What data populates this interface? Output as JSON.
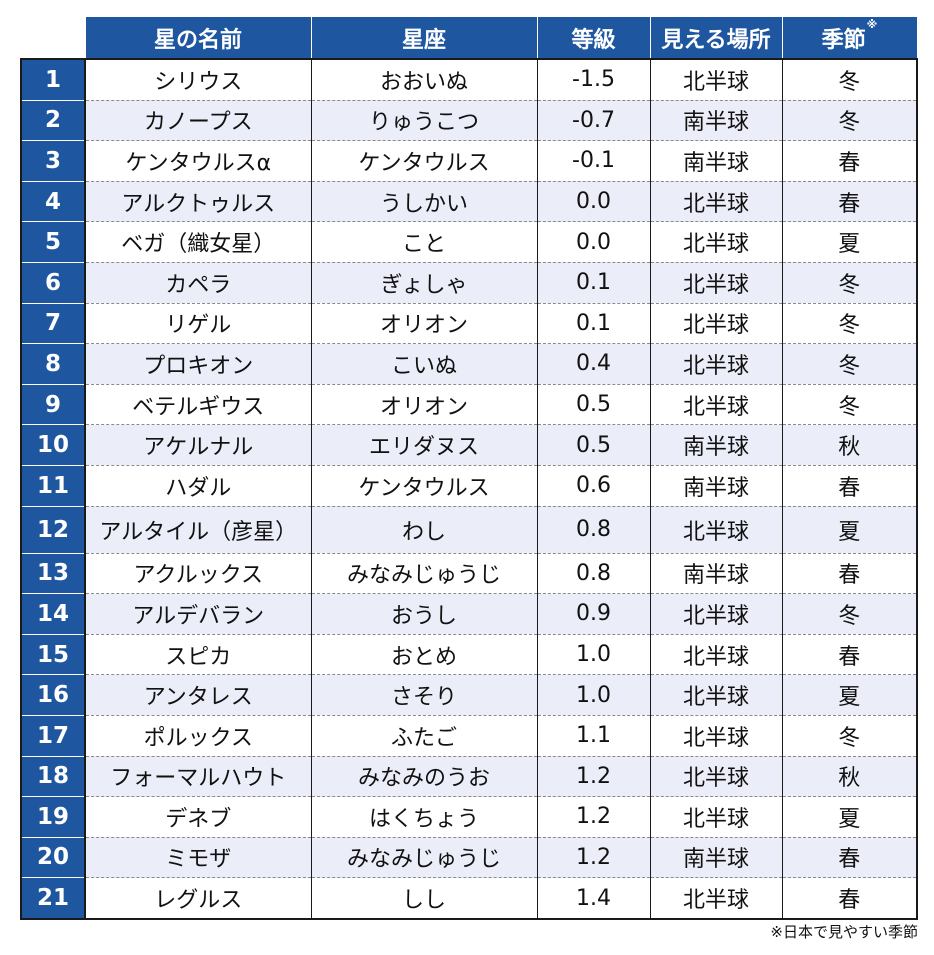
{
  "headers": {
    "name": "星の名前",
    "constellation": "星座",
    "magnitude": "等級",
    "place": "見える場所",
    "season": "季節",
    "season_mark": "※"
  },
  "rows": [
    {
      "no": "1",
      "name": "シリウス",
      "constellation": "おおいぬ",
      "magnitude": "-1.5",
      "place": "北半球",
      "season": "冬"
    },
    {
      "no": "2",
      "name": "カノープス",
      "constellation": "りゅうこつ",
      "magnitude": "-0.7",
      "place": "南半球",
      "season": "冬"
    },
    {
      "no": "3",
      "name": "ケンタウルスα",
      "constellation": "ケンタウルス",
      "magnitude": "-0.1",
      "place": "南半球",
      "season": "春"
    },
    {
      "no": "4",
      "name": "アルクトゥルス",
      "constellation": "うしかい",
      "magnitude": "0.0",
      "place": "北半球",
      "season": "春"
    },
    {
      "no": "5",
      "name": "ベガ（織女星）",
      "constellation": "こと",
      "magnitude": "0.0",
      "place": "北半球",
      "season": "夏"
    },
    {
      "no": "6",
      "name": "カペラ",
      "constellation": "ぎょしゃ",
      "magnitude": "0.1",
      "place": "北半球",
      "season": "冬"
    },
    {
      "no": "7",
      "name": "リゲル",
      "constellation": "オリオン",
      "magnitude": "0.1",
      "place": "北半球",
      "season": "冬"
    },
    {
      "no": "8",
      "name": "プロキオン",
      "constellation": "こいぬ",
      "magnitude": "0.4",
      "place": "北半球",
      "season": "冬"
    },
    {
      "no": "9",
      "name": "ベテルギウス",
      "constellation": "オリオン",
      "magnitude": "0.5",
      "place": "北半球",
      "season": "冬"
    },
    {
      "no": "10",
      "name": "アケルナル",
      "constellation": "エリダヌス",
      "magnitude": "0.5",
      "place": "南半球",
      "season": "秋"
    },
    {
      "no": "11",
      "name": "ハダル",
      "constellation": "ケンタウルス",
      "magnitude": "0.6",
      "place": "南半球",
      "season": "春"
    },
    {
      "no": "12",
      "name": "アルタイル（彦星）",
      "constellation": "わし",
      "magnitude": "0.8",
      "place": "北半球",
      "season": "夏"
    },
    {
      "no": "13",
      "name": "アクルックス",
      "constellation": "みなみじゅうじ",
      "magnitude": "0.8",
      "place": "南半球",
      "season": "春"
    },
    {
      "no": "14",
      "name": "アルデバラン",
      "constellation": "おうし",
      "magnitude": "0.9",
      "place": "北半球",
      "season": "冬"
    },
    {
      "no": "15",
      "name": "スピカ",
      "constellation": "おとめ",
      "magnitude": "1.0",
      "place": "北半球",
      "season": "春"
    },
    {
      "no": "16",
      "name": "アンタレス",
      "constellation": "さそり",
      "magnitude": "1.0",
      "place": "北半球",
      "season": "夏"
    },
    {
      "no": "17",
      "name": "ポルックス",
      "constellation": "ふたご",
      "magnitude": "1.1",
      "place": "北半球",
      "season": "冬"
    },
    {
      "no": "18",
      "name": "フォーマルハウト",
      "constellation": "みなみのうお",
      "magnitude": "1.2",
      "place": "北半球",
      "season": "秋"
    },
    {
      "no": "19",
      "name": "デネブ",
      "constellation": "はくちょう",
      "magnitude": "1.2",
      "place": "北半球",
      "season": "夏"
    },
    {
      "no": "20",
      "name": "ミモザ",
      "constellation": "みなみじゅうじ",
      "magnitude": "1.2",
      "place": "南半球",
      "season": "春"
    },
    {
      "no": "21",
      "name": "レグルス",
      "constellation": "しし",
      "magnitude": "1.4",
      "place": "北半球",
      "season": "春"
    }
  ],
  "footnote": "※日本で見やすい季節",
  "colors": {
    "header_bg": "#1e56a0",
    "alt_row_bg": "#ebedf8"
  }
}
